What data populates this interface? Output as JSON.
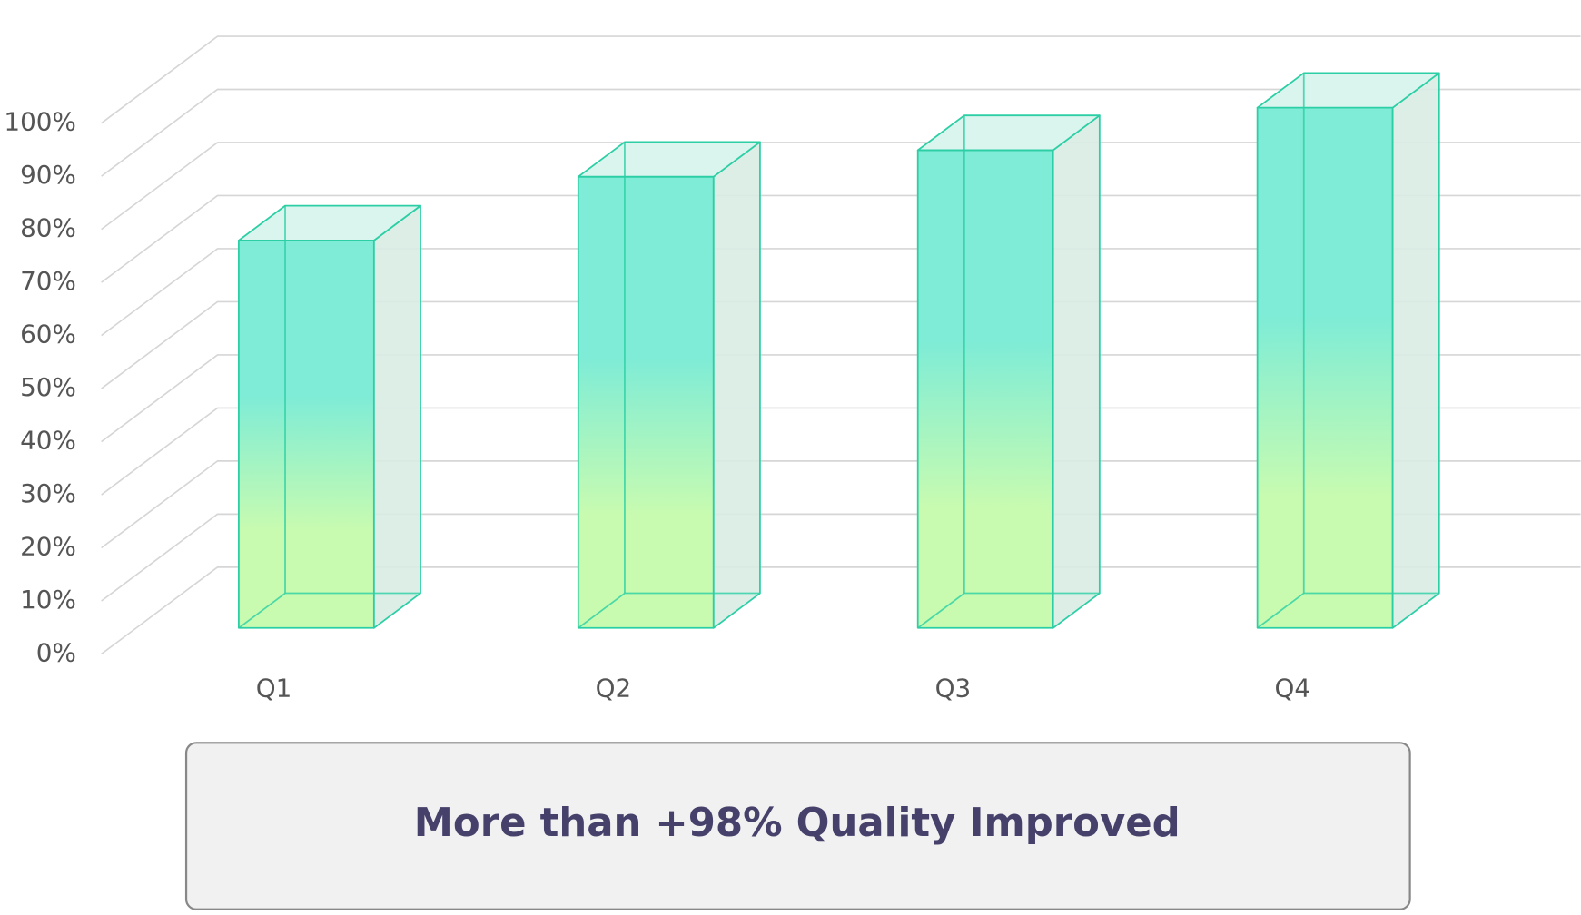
{
  "chart_data": {
    "type": "bar3d",
    "categories": [
      "Q1",
      "Q2",
      "Q3",
      "Q4"
    ],
    "values": [
      73,
      85,
      90,
      98
    ],
    "color": "#7eecd6",
    "ylim": [
      0,
      100
    ],
    "yticks": [
      {
        "value": 0,
        "label": "0%"
      },
      {
        "value": 10,
        "label": "10%"
      },
      {
        "value": 20,
        "label": "20%"
      },
      {
        "value": 30,
        "label": "30%"
      },
      {
        "value": 40,
        "label": "40%"
      },
      {
        "value": 50,
        "label": "50%"
      },
      {
        "value": 60,
        "label": "60%"
      },
      {
        "value": 70,
        "label": "70%"
      },
      {
        "value": 80,
        "label": "80%"
      },
      {
        "value": 90,
        "label": "90%"
      },
      {
        "value": 100,
        "label": "100%"
      }
    ],
    "grid": true,
    "annotation": "More than +98% Quality Improved"
  }
}
